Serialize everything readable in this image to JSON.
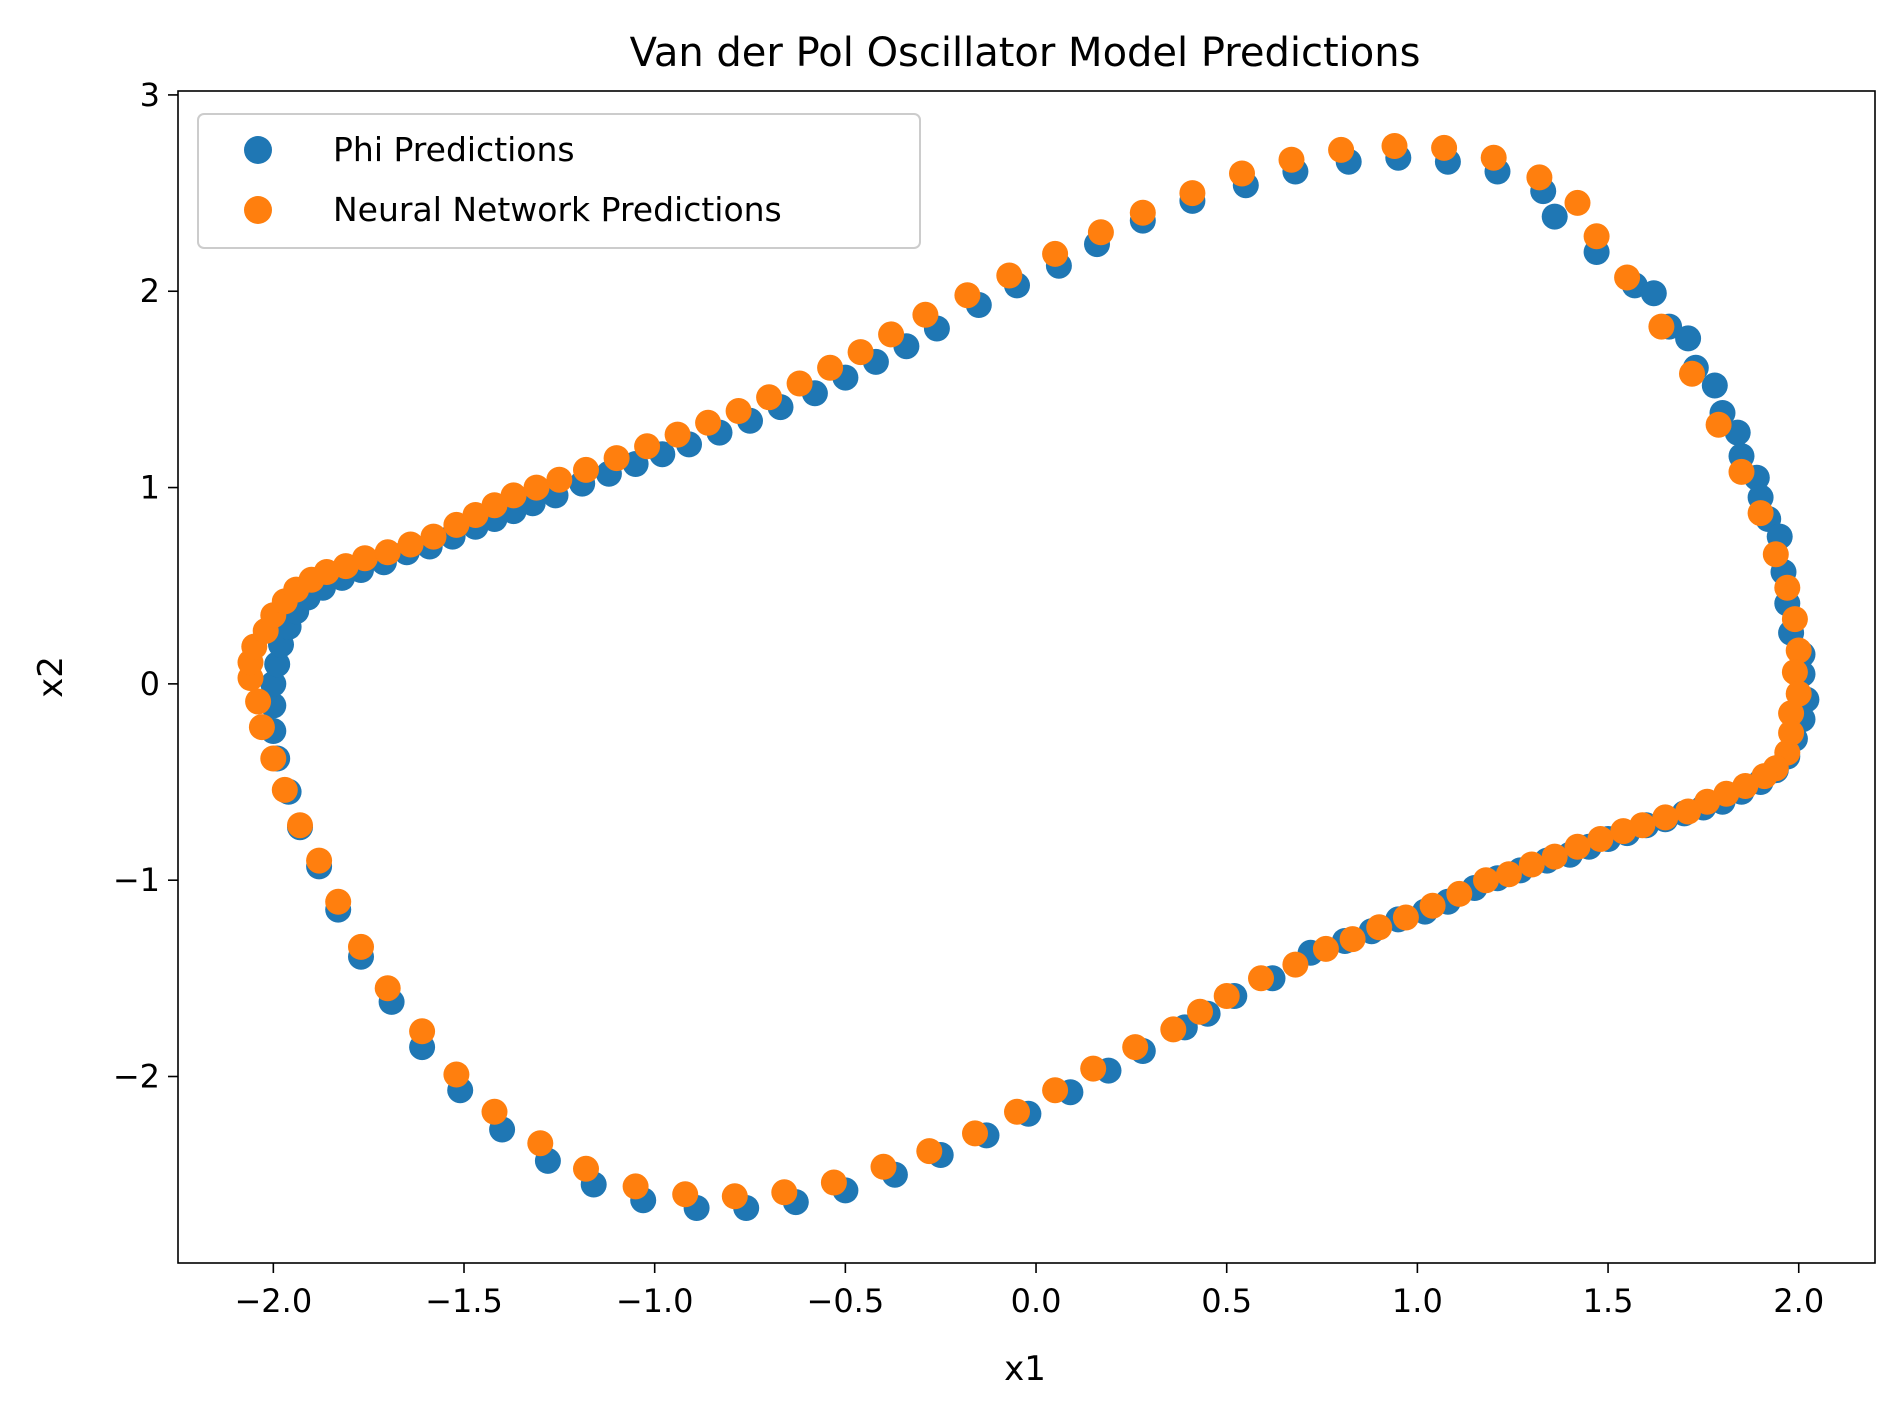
{
  "chart_data": {
    "type": "scatter",
    "title": "Van der Pol Oscillator Model Predictions",
    "xlabel": "x1",
    "ylabel": "x2",
    "xlim": [
      -2.25,
      2.2
    ],
    "ylim": [
      -2.95,
      3.02
    ],
    "xticks": [
      -2.0,
      -1.5,
      -1.0,
      -0.5,
      0.0,
      0.5,
      1.0,
      1.5,
      2.0
    ],
    "xtick_labels": [
      "−2.0",
      "−1.5",
      "−1.0",
      "−0.5",
      "0.0",
      "0.5",
      "1.0",
      "1.5",
      "2.0"
    ],
    "yticks": [
      -2,
      -1,
      0,
      1,
      2,
      3
    ],
    "ytick_labels": [
      "−2",
      "−1",
      "0",
      "1",
      "2",
      "3"
    ],
    "grid": false,
    "legend_position": "top-left",
    "series": [
      {
        "name": "Phi Predictions",
        "color": "#1f77b4",
        "points": [
          [
            2.01,
            0.05
          ],
          [
            2.02,
            -0.08
          ],
          [
            2.01,
            -0.18
          ],
          [
            1.99,
            -0.28
          ],
          [
            1.97,
            -0.37
          ],
          [
            1.94,
            -0.44
          ],
          [
            1.9,
            -0.5
          ],
          [
            1.85,
            -0.55
          ],
          [
            1.8,
            -0.6
          ],
          [
            1.75,
            -0.63
          ],
          [
            1.7,
            -0.66
          ],
          [
            1.65,
            -0.69
          ],
          [
            1.6,
            -0.72
          ],
          [
            1.55,
            -0.76
          ],
          [
            1.5,
            -0.79
          ],
          [
            1.45,
            -0.83
          ],
          [
            1.4,
            -0.87
          ],
          [
            1.34,
            -0.9
          ],
          [
            1.27,
            -0.95
          ],
          [
            1.21,
            -0.99
          ],
          [
            1.15,
            -1.04
          ],
          [
            1.08,
            -1.11
          ],
          [
            1.02,
            -1.16
          ],
          [
            0.95,
            -1.2
          ],
          [
            0.88,
            -1.26
          ],
          [
            0.81,
            -1.31
          ],
          [
            0.72,
            -1.37
          ],
          [
            0.62,
            -1.5
          ],
          [
            0.52,
            -1.59
          ],
          [
            0.45,
            -1.68
          ],
          [
            0.39,
            -1.75
          ],
          [
            0.28,
            -1.87
          ],
          [
            0.19,
            -1.97
          ],
          [
            0.09,
            -2.08
          ],
          [
            -0.02,
            -2.19
          ],
          [
            -0.13,
            -2.3
          ],
          [
            -0.25,
            -2.4
          ],
          [
            -0.37,
            -2.5
          ],
          [
            -0.5,
            -2.58
          ],
          [
            -0.63,
            -2.64
          ],
          [
            -0.76,
            -2.67
          ],
          [
            -0.89,
            -2.67
          ],
          [
            -1.03,
            -2.63
          ],
          [
            -1.16,
            -2.55
          ],
          [
            -1.28,
            -2.43
          ],
          [
            -1.4,
            -2.27
          ],
          [
            -1.51,
            -2.07
          ],
          [
            -1.61,
            -1.85
          ],
          [
            -1.69,
            -1.62
          ],
          [
            -1.77,
            -1.39
          ],
          [
            -1.83,
            -1.15
          ],
          [
            -1.88,
            -0.93
          ],
          [
            -1.93,
            -0.73
          ],
          [
            -1.96,
            -0.55
          ],
          [
            -1.99,
            -0.38
          ],
          [
            -2.0,
            -0.24
          ],
          [
            -2.0,
            -0.11
          ],
          [
            -2.0,
            0.0
          ],
          [
            -1.99,
            0.1
          ],
          [
            -1.98,
            0.2
          ],
          [
            -1.96,
            0.29
          ],
          [
            -1.94,
            0.37
          ],
          [
            -1.91,
            0.44
          ],
          [
            -1.87,
            0.49
          ],
          [
            -1.82,
            0.54
          ],
          [
            -1.77,
            0.58
          ],
          [
            -1.71,
            0.62
          ],
          [
            -1.65,
            0.67
          ],
          [
            -1.59,
            0.7
          ],
          [
            -1.53,
            0.75
          ],
          [
            -1.47,
            0.8
          ],
          [
            -1.42,
            0.84
          ],
          [
            -1.37,
            0.88
          ],
          [
            -1.32,
            0.92
          ],
          [
            -1.26,
            0.96
          ],
          [
            -1.19,
            1.02
          ],
          [
            -1.12,
            1.07
          ],
          [
            -1.05,
            1.12
          ],
          [
            -0.98,
            1.17
          ],
          [
            -0.91,
            1.22
          ],
          [
            -0.83,
            1.28
          ],
          [
            -0.75,
            1.34
          ],
          [
            -0.67,
            1.41
          ],
          [
            -0.58,
            1.48
          ],
          [
            -0.5,
            1.56
          ],
          [
            -0.42,
            1.64
          ],
          [
            -0.34,
            1.72
          ],
          [
            -0.26,
            1.81
          ],
          [
            -0.15,
            1.93
          ],
          [
            -0.05,
            2.03
          ],
          [
            0.06,
            2.13
          ],
          [
            0.16,
            2.24
          ],
          [
            0.28,
            2.36
          ],
          [
            0.41,
            2.46
          ],
          [
            0.55,
            2.54
          ],
          [
            0.68,
            2.61
          ],
          [
            0.82,
            2.66
          ],
          [
            0.95,
            2.68
          ],
          [
            1.08,
            2.66
          ],
          [
            1.21,
            2.61
          ],
          [
            1.33,
            2.51
          ],
          [
            1.36,
            2.38
          ],
          [
            1.47,
            2.2
          ],
          [
            1.57,
            2.03
          ],
          [
            1.62,
            1.99
          ],
          [
            1.66,
            1.82
          ],
          [
            1.71,
            1.76
          ],
          [
            1.73,
            1.61
          ],
          [
            1.78,
            1.52
          ],
          [
            1.8,
            1.38
          ],
          [
            1.84,
            1.28
          ],
          [
            1.85,
            1.16
          ],
          [
            1.89,
            1.05
          ],
          [
            1.9,
            0.95
          ],
          [
            1.92,
            0.84
          ],
          [
            1.95,
            0.75
          ],
          [
            1.96,
            0.57
          ],
          [
            1.97,
            0.41
          ],
          [
            1.98,
            0.26
          ],
          [
            2.01,
            0.15
          ]
        ]
      },
      {
        "name": "Neural Network Predictions",
        "color": "#ff7f0e",
        "points": [
          [
            2.0,
            0.17
          ],
          [
            1.99,
            0.06
          ],
          [
            2.0,
            -0.05
          ],
          [
            1.98,
            -0.15
          ],
          [
            1.98,
            -0.25
          ],
          [
            1.97,
            -0.35
          ],
          [
            1.94,
            -0.43
          ],
          [
            1.91,
            -0.47
          ],
          [
            1.86,
            -0.52
          ],
          [
            1.81,
            -0.56
          ],
          [
            1.76,
            -0.6
          ],
          [
            1.71,
            -0.65
          ],
          [
            1.65,
            -0.68
          ],
          [
            1.59,
            -0.72
          ],
          [
            1.54,
            -0.75
          ],
          [
            1.48,
            -0.79
          ],
          [
            1.42,
            -0.83
          ],
          [
            1.36,
            -0.88
          ],
          [
            1.3,
            -0.92
          ],
          [
            1.24,
            -0.97
          ],
          [
            1.18,
            -1.0
          ],
          [
            1.11,
            -1.07
          ],
          [
            1.04,
            -1.13
          ],
          [
            0.97,
            -1.19
          ],
          [
            0.9,
            -1.24
          ],
          [
            0.83,
            -1.3
          ],
          [
            0.76,
            -1.35
          ],
          [
            0.68,
            -1.43
          ],
          [
            0.59,
            -1.5
          ],
          [
            0.5,
            -1.59
          ],
          [
            0.43,
            -1.67
          ],
          [
            0.36,
            -1.76
          ],
          [
            0.26,
            -1.85
          ],
          [
            0.15,
            -1.96
          ],
          [
            0.05,
            -2.07
          ],
          [
            -0.05,
            -2.18
          ],
          [
            -0.16,
            -2.29
          ],
          [
            -0.28,
            -2.38
          ],
          [
            -0.4,
            -2.46
          ],
          [
            -0.53,
            -2.54
          ],
          [
            -0.66,
            -2.59
          ],
          [
            -0.79,
            -2.61
          ],
          [
            -0.92,
            -2.6
          ],
          [
            -1.05,
            -2.56
          ],
          [
            -1.18,
            -2.47
          ],
          [
            -1.3,
            -2.34
          ],
          [
            -1.42,
            -2.18
          ],
          [
            -1.52,
            -1.99
          ],
          [
            -1.61,
            -1.77
          ],
          [
            -1.7,
            -1.55
          ],
          [
            -1.77,
            -1.34
          ],
          [
            -1.83,
            -1.11
          ],
          [
            -1.88,
            -0.9
          ],
          [
            -1.93,
            -0.72
          ],
          [
            -1.97,
            -0.54
          ],
          [
            -2.0,
            -0.38
          ],
          [
            -2.03,
            -0.22
          ],
          [
            -2.04,
            -0.09
          ],
          [
            -2.06,
            0.03
          ],
          [
            -2.06,
            0.11
          ],
          [
            -2.05,
            0.19
          ],
          [
            -2.02,
            0.27
          ],
          [
            -2.0,
            0.35
          ],
          [
            -1.97,
            0.42
          ],
          [
            -1.94,
            0.48
          ],
          [
            -1.9,
            0.53
          ],
          [
            -1.86,
            0.57
          ],
          [
            -1.81,
            0.6
          ],
          [
            -1.76,
            0.64
          ],
          [
            -1.7,
            0.67
          ],
          [
            -1.64,
            0.71
          ],
          [
            -1.58,
            0.75
          ],
          [
            -1.52,
            0.81
          ],
          [
            -1.47,
            0.86
          ],
          [
            -1.42,
            0.91
          ],
          [
            -1.37,
            0.96
          ],
          [
            -1.31,
            1.0
          ],
          [
            -1.25,
            1.04
          ],
          [
            -1.18,
            1.09
          ],
          [
            -1.1,
            1.15
          ],
          [
            -1.02,
            1.21
          ],
          [
            -0.94,
            1.27
          ],
          [
            -0.86,
            1.33
          ],
          [
            -0.78,
            1.39
          ],
          [
            -0.7,
            1.46
          ],
          [
            -0.62,
            1.53
          ],
          [
            -0.54,
            1.61
          ],
          [
            -0.46,
            1.69
          ],
          [
            -0.38,
            1.78
          ],
          [
            -0.29,
            1.88
          ],
          [
            -0.18,
            1.98
          ],
          [
            -0.07,
            2.08
          ],
          [
            0.05,
            2.19
          ],
          [
            0.17,
            2.3
          ],
          [
            0.28,
            2.4
          ],
          [
            0.41,
            2.5
          ],
          [
            0.54,
            2.6
          ],
          [
            0.67,
            2.67
          ],
          [
            0.8,
            2.72
          ],
          [
            0.94,
            2.74
          ],
          [
            1.07,
            2.73
          ],
          [
            1.2,
            2.68
          ],
          [
            1.32,
            2.58
          ],
          [
            1.42,
            2.45
          ],
          [
            1.47,
            2.28
          ],
          [
            1.55,
            2.07
          ],
          [
            1.64,
            1.82
          ],
          [
            1.72,
            1.58
          ],
          [
            1.79,
            1.32
          ],
          [
            1.85,
            1.08
          ],
          [
            1.9,
            0.87
          ],
          [
            1.94,
            0.66
          ],
          [
            1.97,
            0.49
          ],
          [
            1.99,
            0.33
          ]
        ]
      }
    ]
  }
}
